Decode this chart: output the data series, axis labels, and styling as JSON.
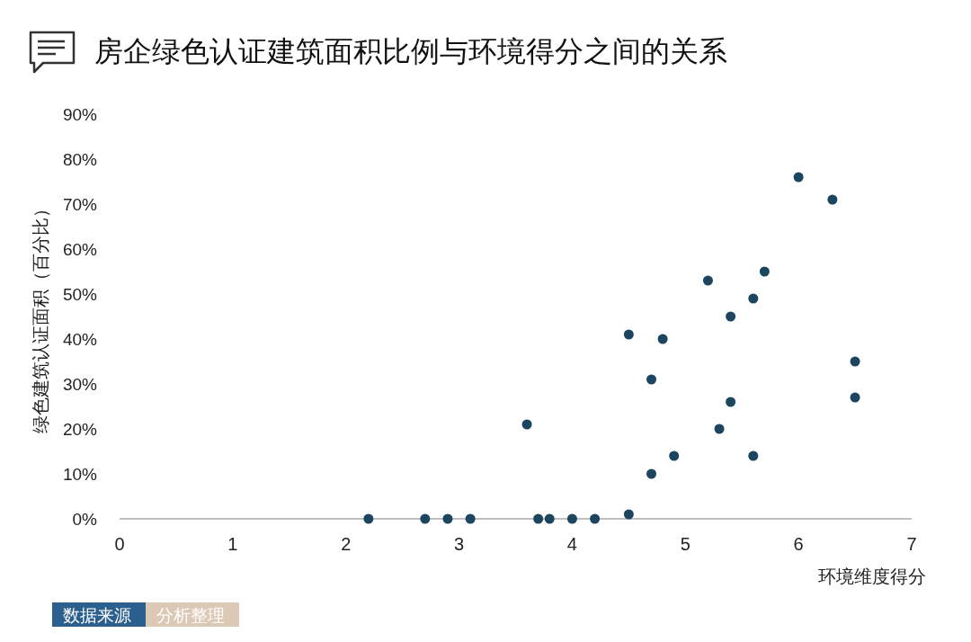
{
  "chart_data": {
    "type": "scatter",
    "title": "房企绿色认证建筑面积比例与环境得分之间的关系",
    "xlabel": "环境维度得分",
    "ylabel": "绿色建筑认证面积（百分比）",
    "annotations": [
      "数据来源",
      "分析整理"
    ],
    "xlim": [
      0,
      7
    ],
    "xticks": [
      0,
      1,
      2,
      3,
      4,
      5,
      6,
      7
    ],
    "ylim": [
      0,
      90
    ],
    "yticks": [
      {
        "value": 0,
        "label": "0%"
      },
      {
        "value": 10,
        "label": "10%"
      },
      {
        "value": 20,
        "label": "20%"
      },
      {
        "value": 30,
        "label": "30%"
      },
      {
        "value": 40,
        "label": "40%"
      },
      {
        "value": 50,
        "label": "50%"
      },
      {
        "value": 60,
        "label": "60%"
      },
      {
        "value": 70,
        "label": "70%"
      },
      {
        "value": 80,
        "label": "80%"
      },
      {
        "value": 90,
        "label": "90%"
      }
    ],
    "grid": false,
    "marker": "circle",
    "series": [
      {
        "color": "#1c4560",
        "x": [
          2.2,
          2.7,
          2.9,
          3.1,
          3.7,
          3.8,
          4.0,
          4.2,
          4.5,
          3.6,
          4.5,
          4.7,
          4.8,
          4.7,
          4.9,
          5.2,
          5.3,
          5.4,
          5.4,
          5.6,
          5.7,
          5.6,
          6.0,
          6.3,
          6.5,
          6.5
        ],
        "values": [
          0,
          0,
          0,
          0,
          0,
          0,
          0,
          0,
          1,
          21,
          41,
          31,
          40,
          10,
          14,
          53,
          20,
          45,
          26,
          49,
          55,
          14,
          76,
          71,
          35,
          27
        ]
      }
    ]
  }
}
